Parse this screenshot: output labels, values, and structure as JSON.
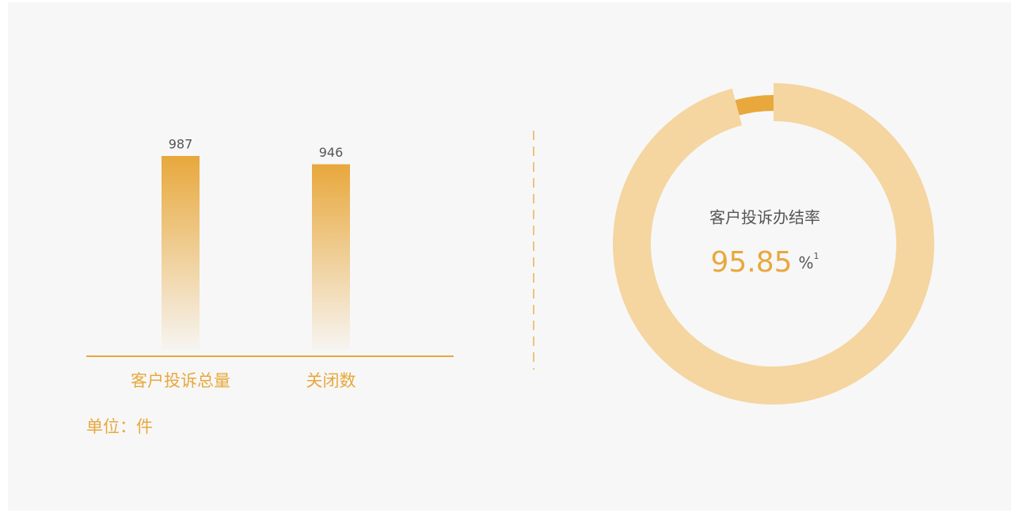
{
  "chart_data": [
    {
      "type": "bar",
      "categories": [
        "客户投诉总量",
        "关闭数"
      ],
      "values": [
        987,
        946
      ],
      "color": "#e8a83c",
      "unit_label": "单位：件"
    },
    {
      "type": "donut",
      "title": "客户投诉办结率",
      "value": 95.85,
      "unit": "%",
      "unit_superscript": "1",
      "color": "#f5d5a0",
      "rest_color": "#e8a83c"
    }
  ]
}
